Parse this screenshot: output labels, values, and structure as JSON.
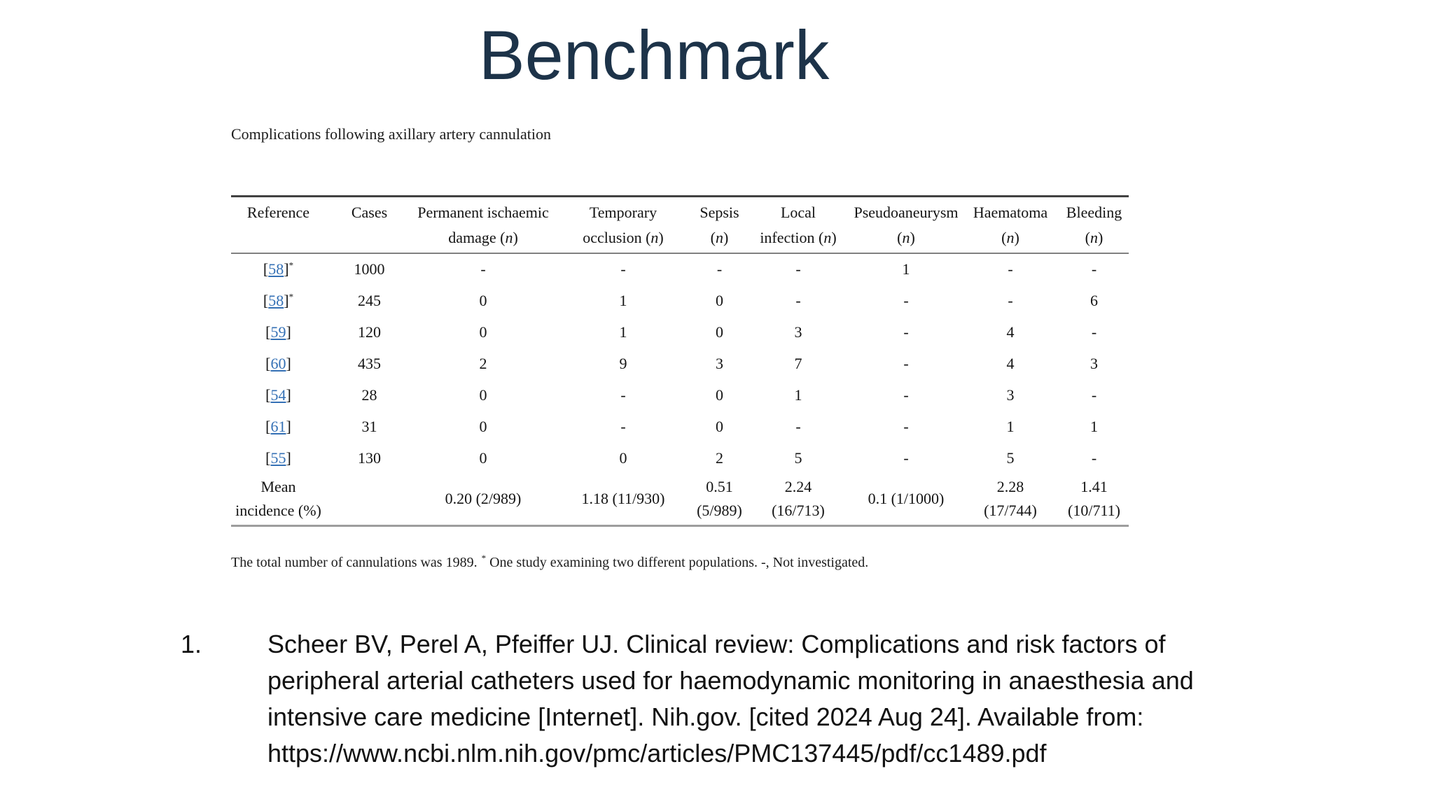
{
  "slide": {
    "title": "Benchmark",
    "title_color": "#1d3349",
    "background_color": "#ffffff"
  },
  "figure": {
    "caption": "Complications following axillary artery cannulation",
    "table": {
      "link_color": "#3470b5",
      "ref_open": "[",
      "ref_close": "]",
      "columns": [
        {
          "top": "Reference"
        },
        {
          "top": "Cases"
        },
        {
          "top": "Permanent ischaemic",
          "bottom_pre": "damage (",
          "bottom_it": "n",
          "bottom_post": ")"
        },
        {
          "top": "Temporary",
          "bottom_pre": "occlusion (",
          "bottom_it": "n",
          "bottom_post": ")"
        },
        {
          "top": "Sepsis",
          "bottom_pre": "(",
          "bottom_it": "n",
          "bottom_post": ")"
        },
        {
          "top": "Local",
          "bottom_pre": "infection (",
          "bottom_it": "n",
          "bottom_post": ")"
        },
        {
          "top": "Pseudoaneurysm",
          "bottom_pre": "(",
          "bottom_it": "n",
          "bottom_post": ")"
        },
        {
          "top": "Haematoma",
          "bottom_pre": "(",
          "bottom_it": "n",
          "bottom_post": ")"
        },
        {
          "top": "Bleeding",
          "bottom_pre": "(",
          "bottom_it": "n",
          "bottom_post": ")"
        }
      ],
      "rows": [
        {
          "ref": "58",
          "sup": "*",
          "cases": "1000",
          "values": [
            "-",
            "-",
            "-",
            "-",
            "1",
            "-",
            "-"
          ]
        },
        {
          "ref": "58",
          "sup": "*",
          "cases": "245",
          "values": [
            "0",
            "1",
            "0",
            "-",
            "-",
            "-",
            "6"
          ]
        },
        {
          "ref": "59",
          "sup": "",
          "cases": "120",
          "values": [
            "0",
            "1",
            "0",
            "3",
            "-",
            "4",
            "-"
          ]
        },
        {
          "ref": "60",
          "sup": "",
          "cases": "435",
          "values": [
            "2",
            "9",
            "3",
            "7",
            "-",
            "4",
            "3"
          ]
        },
        {
          "ref": "54",
          "sup": "",
          "cases": "28",
          "values": [
            "0",
            "-",
            "0",
            "1",
            "-",
            "3",
            "-"
          ]
        },
        {
          "ref": "61",
          "sup": "",
          "cases": "31",
          "values": [
            "0",
            "-",
            "0",
            "-",
            "-",
            "1",
            "1"
          ]
        },
        {
          "ref": "55",
          "sup": "",
          "cases": "130",
          "values": [
            "0",
            "0",
            "2",
            "5",
            "-",
            "5",
            "-"
          ]
        }
      ],
      "summary": {
        "label": "Mean\nincidence (%)",
        "cases": "",
        "values": [
          "0.20 (2/989)",
          "1.18 (11/930)",
          "0.51\n(5/989)",
          "2.24\n(16/713)",
          "0.1 (1/1000)",
          "2.28\n(17/744)",
          "1.41\n(10/711)"
        ]
      }
    },
    "footnote": {
      "part1": "The total number of cannulations was 1989.",
      "sup": "*",
      "part2": "One study examining two different populations. -, Not investigated."
    }
  },
  "references": {
    "items": [
      {
        "number": "1.",
        "text": "Scheer BV, Perel A, Pfeiffer UJ. Clinical review: Complications and risk factors of peripheral arterial catheters used for haemodynamic monitoring in anaesthesia and intensive care medicine [Internet]. Nih.gov. [cited 2024 Aug 24]. Available from: https://www.ncbi.nlm.nih.gov/pmc/articles/PMC137445/pdf/cc1489.pdf"
      }
    ]
  }
}
